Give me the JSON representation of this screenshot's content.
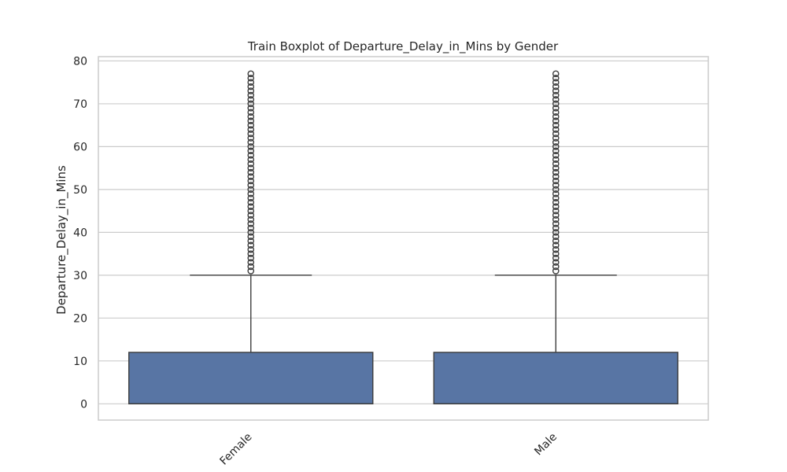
{
  "chart_data": {
    "type": "boxplot",
    "title": "Train Boxplot of Departure_Delay_in_Mins by Gender",
    "xlabel": "",
    "ylabel": "Departure_Delay_in_Mins",
    "categories": [
      "Female",
      "Male"
    ],
    "yticks": [
      0,
      10,
      20,
      30,
      40,
      50,
      60,
      70,
      80
    ],
    "ylim": [
      -3.8,
      81
    ],
    "grid": true,
    "box_color": "#5875a4",
    "series": [
      {
        "category": "Female",
        "min": 0,
        "q1": 0,
        "median": 0,
        "q3": 12,
        "max": 30,
        "outliers_from": 31,
        "outliers_to": 77
      },
      {
        "category": "Male",
        "min": 0,
        "q1": 0,
        "median": 0,
        "q3": 12,
        "max": 30,
        "outliers_from": 31,
        "outliers_to": 77
      }
    ]
  }
}
